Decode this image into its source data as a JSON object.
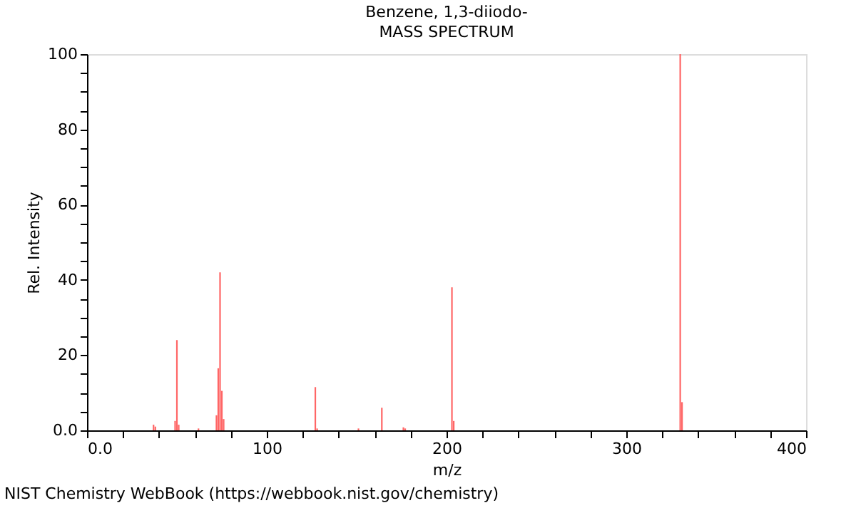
{
  "chart_data": {
    "type": "bar",
    "title": "Benzene, 1,3-diiodo-",
    "subtitle": "MASS SPECTRUM",
    "xlabel": "m/z",
    "ylabel": "Rel. Intensity",
    "x": [
      37,
      38,
      49,
      50,
      51,
      62,
      72,
      73,
      74,
      75,
      76,
      127,
      128,
      151,
      164,
      176,
      177,
      203,
      204,
      330,
      331
    ],
    "values": [
      1.5,
      1.0,
      2.5,
      24,
      1.5,
      0.5,
      4,
      16.5,
      42,
      10.5,
      3,
      11.5,
      0.5,
      0.5,
      6,
      0.8,
      0.5,
      38,
      2.5,
      100,
      7.5
    ],
    "color": "#ff6666",
    "xlim": [
      0,
      400
    ],
    "ylim": [
      0,
      100
    ],
    "xticks": [
      {
        "value": 0,
        "label": "0.0"
      },
      {
        "value": 20,
        "label": null
      },
      {
        "value": 40,
        "label": null
      },
      {
        "value": 60,
        "label": null
      },
      {
        "value": 80,
        "label": null
      },
      100,
      {
        "value": 120,
        "label": null
      },
      {
        "value": 140,
        "label": null
      },
      {
        "value": 160,
        "label": null
      },
      {
        "value": 180,
        "label": null
      },
      200,
      {
        "value": 220,
        "label": null
      },
      {
        "value": 240,
        "label": null
      },
      {
        "value": 260,
        "label": null
      },
      {
        "value": 280,
        "label": null
      },
      300,
      {
        "value": 320,
        "label": null
      },
      {
        "value": 340,
        "label": null
      },
      {
        "value": 360,
        "label": null
      },
      {
        "value": 380,
        "label": null
      },
      400
    ],
    "yticks": [
      {
        "value": 0,
        "label": "0.0"
      },
      {
        "value": 5,
        "label": null
      },
      {
        "value": 10,
        "label": null
      },
      {
        "value": 15,
        "label": null
      },
      20,
      {
        "value": 25,
        "label": null
      },
      {
        "value": 30,
        "label": null
      },
      {
        "value": 35,
        "label": null
      },
      40,
      {
        "value": 45,
        "label": null
      },
      {
        "value": 50,
        "label": null
      },
      {
        "value": 55,
        "label": null
      },
      60,
      {
        "value": 65,
        "label": null
      },
      {
        "value": 70,
        "label": null
      },
      {
        "value": 75,
        "label": null
      },
      80,
      {
        "value": 85,
        "label": null
      },
      {
        "value": 90,
        "label": null
      },
      {
        "value": 95,
        "label": null
      },
      100
    ],
    "grid": false,
    "annotations": [
      "NIST Chemistry WebBook (https://webbook.nist.gov/chemistry)"
    ]
  }
}
